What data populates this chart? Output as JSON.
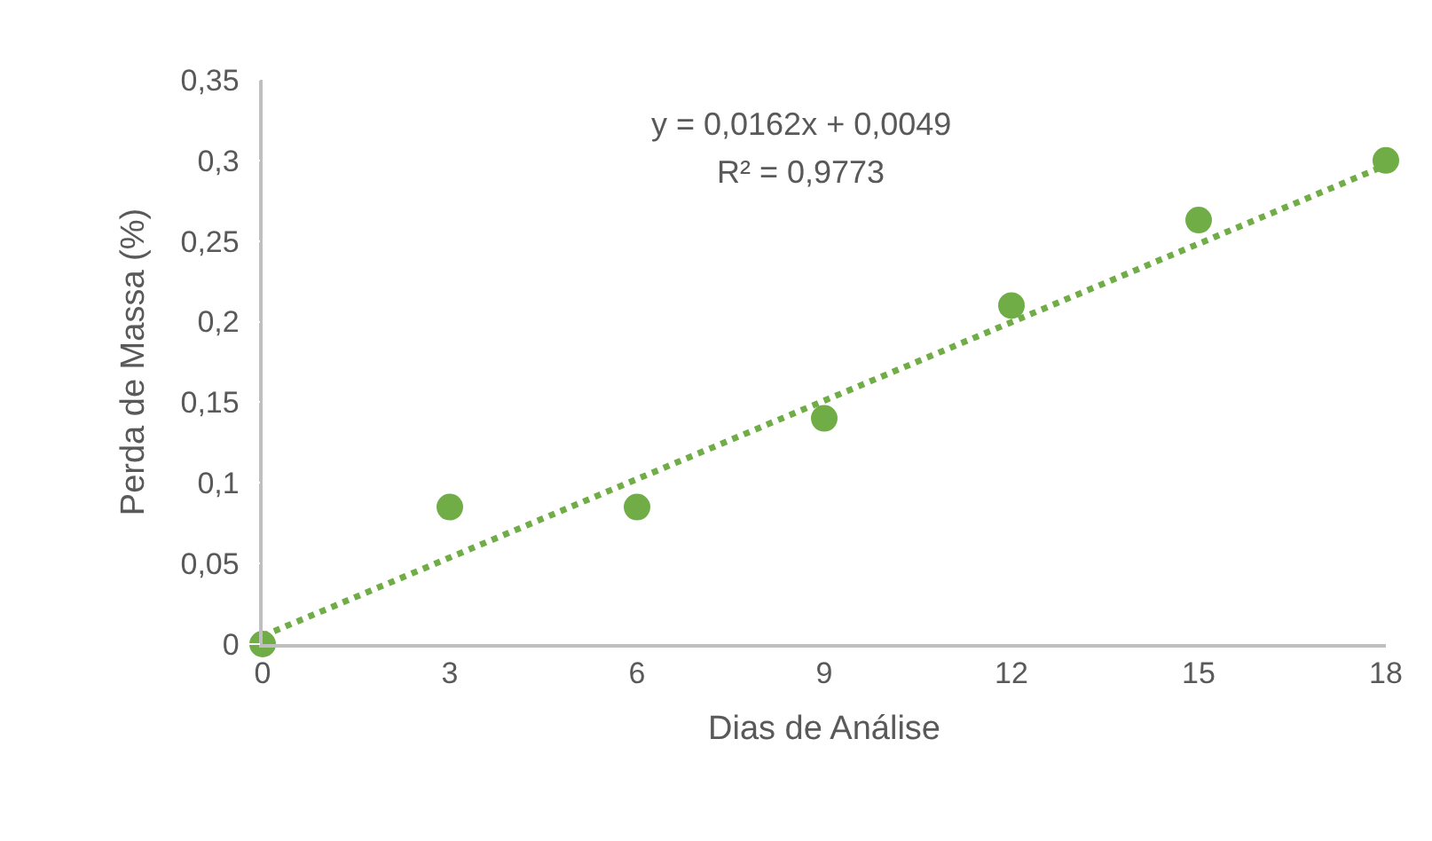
{
  "chart_data": {
    "type": "scatter",
    "xlabel": "Dias de Análise",
    "ylabel": "Perda de Massa (%)",
    "x": [
      0,
      3,
      6,
      9,
      12,
      15,
      18
    ],
    "series": [
      {
        "color": "#70ad47",
        "values": [
          0,
          0.085,
          0.085,
          0.14,
          0.21,
          0.263,
          0.3
        ],
        "marker": "circle"
      },
      {
        "type": "line",
        "color": "#70ad47",
        "x": [
          0,
          18
        ],
        "values": [
          0.005,
          0.297
        ],
        "line_style": "dotted",
        "marker": "none"
      }
    ],
    "xlim": [
      0,
      18
    ],
    "xticks": [
      0,
      3,
      6,
      9,
      12,
      15,
      18
    ],
    "ylim": [
      0,
      0.35
    ],
    "yticks": [
      0,
      {
        "value": 0.05,
        "label": "0,05"
      },
      {
        "value": 0.1,
        "label": "0,1"
      },
      {
        "value": 0.15,
        "label": "0,15"
      },
      {
        "value": 0.2,
        "label": "0,2"
      },
      {
        "value": 0.25,
        "label": "0,25"
      },
      {
        "value": 0.3,
        "label": "0,3"
      },
      {
        "value": 0.35,
        "label": "0,35"
      }
    ],
    "annotations": [
      "y = 0,0162x + 0,0049",
      "R² = 0,9773"
    ]
  }
}
